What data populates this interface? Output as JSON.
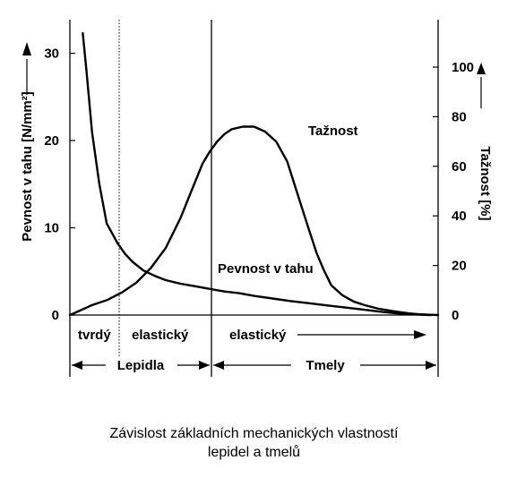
{
  "chart_data": {
    "type": "line",
    "x_range": [
      0,
      100
    ],
    "y_left": {
      "label": "Pevnost v tahu [N/mm²]",
      "ylim": [
        0,
        32
      ],
      "ticks": [
        0,
        10,
        20,
        30
      ]
    },
    "y_right": {
      "label": "Tažnost [%]",
      "ylim": [
        0,
        114
      ],
      "ticks": [
        0,
        20,
        40,
        60,
        80,
        100
      ]
    },
    "series": [
      {
        "name": "Pevnost v tahu",
        "axis": "left",
        "x": [
          3.5,
          4.5,
          6,
          8,
          10,
          13,
          15,
          17,
          20,
          23,
          26,
          30,
          34,
          38,
          42,
          46,
          50,
          55,
          60,
          65,
          70,
          75,
          80,
          85,
          90,
          95,
          98
        ],
        "y": [
          32.3,
          28,
          21,
          15,
          10.5,
          8.2,
          7,
          6.1,
          5.1,
          4.5,
          4.0,
          3.6,
          3.3,
          3.0,
          2.7,
          2.5,
          2.2,
          1.9,
          1.6,
          1.35,
          1.1,
          0.85,
          0.6,
          0.35,
          0.15,
          0.05,
          0.0
        ]
      },
      {
        "name": "Tažnost",
        "axis": "right",
        "x": [
          0,
          3,
          6,
          10,
          14,
          18,
          22,
          26,
          30,
          33,
          36,
          38,
          40,
          42,
          44,
          47,
          50,
          53,
          56,
          59,
          62,
          65,
          67,
          69,
          71,
          74,
          77,
          80,
          84,
          88,
          92,
          95,
          98,
          100
        ],
        "y": [
          0,
          2,
          4,
          6,
          9,
          13,
          19,
          27,
          39,
          50,
          61,
          66,
          70,
          73,
          75,
          76,
          76,
          74,
          70,
          62,
          48,
          34,
          25,
          18,
          12,
          8,
          5.5,
          4,
          2.5,
          1.5,
          0.7,
          0.3,
          0.1,
          0
        ]
      }
    ],
    "annotations": {
      "series_labels": [
        "Tažnost",
        "Pevnost v tahu"
      ],
      "zone_labels": [
        "tvrdý",
        "elastický",
        "elastický"
      ],
      "group_labels": [
        "Lepidla",
        "Tmely"
      ]
    }
  },
  "caption": {
    "line1": "Závislost základních mechanických vlastností",
    "line2": "lepidel a tmelů"
  },
  "colors": {
    "line": "#000000",
    "background": "#ffffff"
  }
}
